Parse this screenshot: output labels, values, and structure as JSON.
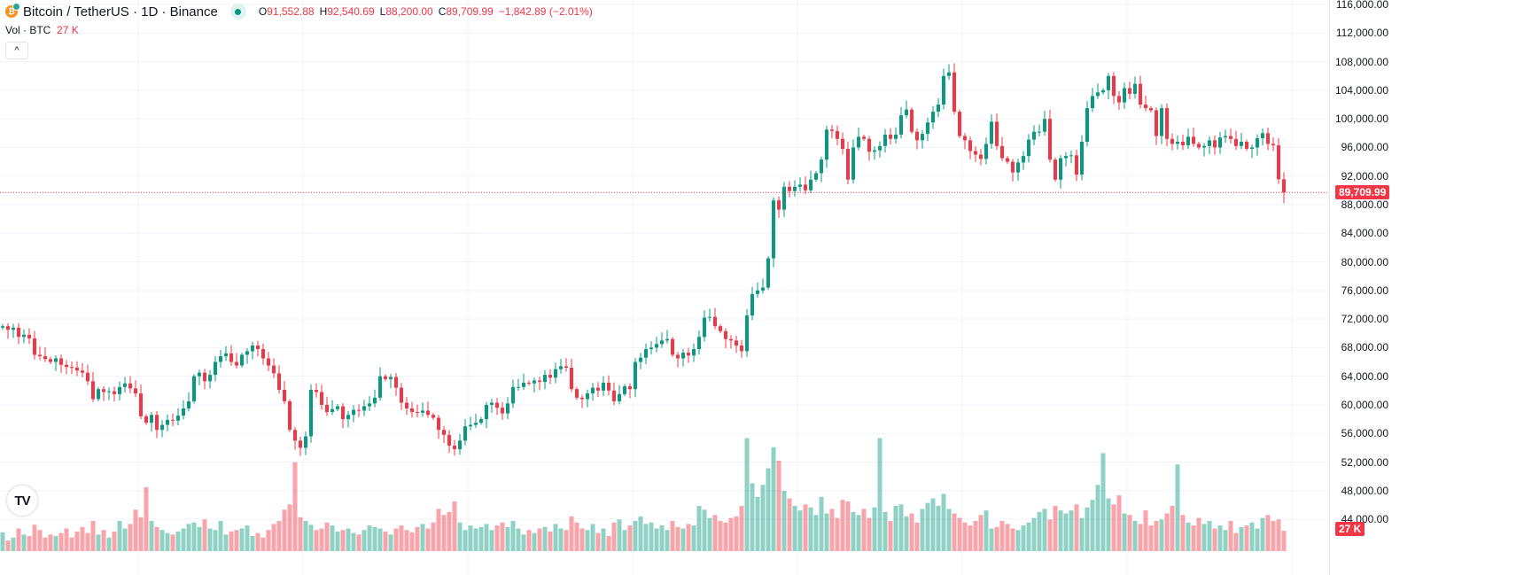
{
  "header": {
    "coin_icon": "bitcoin-icon",
    "symbol": "Bitcoin / TetherUS · 1D · Binance",
    "open_label": "O",
    "open": "91,552.88",
    "high_label": "H",
    "high": "92,540.69",
    "low_label": "L",
    "low": "88,200.00",
    "close_label": "C",
    "close": "89,709.99",
    "change": "−1,842.89 (−2.01%)",
    "market_status": "market-open-dot"
  },
  "volume_legend": {
    "label": "Vol · BTC",
    "value": "27 K"
  },
  "collapse_icon": "^",
  "logo": "TV",
  "colors": {
    "up": "#089981",
    "down": "#F23645",
    "grid": "#f0f3fa"
  },
  "price_axis": {
    "labels": [
      "116,000.00",
      "112,000.00",
      "108,000.00",
      "104,000.00",
      "100,000.00",
      "96,000.00",
      "92,000.00",
      "88,000.00",
      "84,000.00",
      "80,000.00",
      "76,000.00",
      "72,000.00",
      "68,000.00",
      "64,000.00",
      "60,000.00",
      "56,000.00",
      "52,000.00",
      "48,000.00",
      "44,000.00"
    ],
    "last_price_tag": "89,709.99",
    "volume_tag": "27 K"
  },
  "chart_data": {
    "type": "candlestick",
    "interval": "1D",
    "price_unit": "USDT (thousands)",
    "ylim": [
      44,
      116
    ],
    "last_candle": {
      "open": 91.55288,
      "high": 92.54069,
      "low": 88.2,
      "close": 89.70999
    },
    "closes": [
      71.0,
      70.5,
      70.8,
      69.5,
      69.8,
      69.3,
      67.0,
      66.8,
      66.4,
      66.0,
      66.5,
      65.6,
      65.3,
      65.2,
      64.8,
      64.5,
      63.3,
      60.8,
      62.2,
      61.8,
      61.9,
      61.5,
      62.5,
      63.0,
      62.3,
      61.6,
      58.4,
      57.5,
      58.6,
      56.5,
      57.2,
      57.9,
      57.8,
      58.5,
      59.5,
      60.5,
      64.0,
      64.5,
      63.3,
      64.2,
      66.0,
      66.8,
      67.2,
      66.0,
      65.5,
      67.0,
      67.5,
      68.3,
      67.8,
      66.5,
      65.5,
      64.4,
      62.1,
      60.5,
      56.5,
      55.0,
      54.0,
      55.6,
      62.1,
      61.8,
      60.0,
      59.0,
      59.4,
      59.8,
      58.0,
      58.6,
      59.3,
      59.2,
      59.8,
      60.2,
      61.0,
      64.0,
      63.6,
      63.9,
      62.4,
      60.3,
      59.5,
      59.0,
      58.9,
      59.2,
      58.6,
      58.2,
      56.5,
      55.8,
      54.3,
      53.8,
      55.0,
      57.0,
      57.2,
      57.5,
      58.0,
      60.0,
      60.3,
      59.6,
      58.8,
      60.2,
      62.5,
      62.5,
      63.1,
      63.0,
      63.4,
      63.2,
      64.2,
      63.8,
      65.0,
      65.4,
      65.2,
      62.2,
      61.0,
      60.8,
      61.6,
      62.4,
      62.0,
      63.1,
      62.0,
      60.5,
      61.5,
      62.6,
      62.2,
      66.0,
      66.6,
      67.8,
      68.0,
      68.5,
      69.0,
      69.2,
      67.0,
      66.5,
      67.3,
      66.9,
      67.8,
      69.5,
      72.2,
      72.3,
      71.0,
      70.3,
      69.2,
      69.0,
      68.3,
      67.5,
      72.5,
      75.5,
      76.0,
      76.4,
      80.5,
      88.6,
      87.3,
      90.5,
      89.9,
      90.5,
      90.8,
      90.0,
      91.5,
      92.4,
      94.3,
      98.5,
      98.3,
      97.2,
      95.8,
      91.5,
      96.0,
      97.5,
      97.2,
      95.4,
      95.6,
      96.2,
      97.8,
      97.2,
      97.8,
      100.5,
      101.3,
      98.2,
      97.0,
      97.9,
      99.5,
      101.0,
      102.0,
      106.0,
      106.5,
      101.0,
      97.6,
      97.0,
      95.5,
      95.0,
      94.4,
      96.5,
      99.6,
      96.2,
      94.5,
      94.0,
      92.5,
      93.9,
      94.8,
      97.1,
      98.2,
      98.2,
      100.0,
      94.3,
      91.5,
      94.5,
      94.8,
      94.9,
      92.2,
      96.8,
      101.5,
      103.2,
      103.7,
      104.0,
      106.0,
      103.2,
      102.3,
      104.3,
      103.5,
      104.9,
      102.0,
      101.5,
      101.2,
      97.6,
      101.5,
      97.2,
      96.5,
      96.8,
      96.3,
      97.5,
      96.5,
      96.0,
      96.2,
      97.0,
      96.0,
      97.4,
      97.6,
      97.2,
      96.2,
      96.8,
      95.8,
      96.0,
      97.3,
      98.0,
      96.5,
      96.3,
      91.55288,
      89.70999
    ],
    "volumes_k": [
      25,
      14,
      18,
      30,
      22,
      20,
      35,
      28,
      18,
      22,
      20,
      24,
      30,
      18,
      26,
      32,
      24,
      40,
      22,
      28,
      18,
      26,
      40,
      30,
      36,
      55,
      45,
      85,
      40,
      32,
      28,
      24,
      22,
      26,
      30,
      36,
      38,
      32,
      42,
      30,
      28,
      40,
      22,
      26,
      28,
      30,
      34,
      20,
      24,
      18,
      28,
      36,
      40,
      55,
      62,
      118,
      45,
      40,
      35,
      28,
      30,
      38,
      34,
      26,
      28,
      30,
      24,
      22,
      28,
      34,
      32,
      30,
      26,
      22,
      30,
      34,
      28,
      25,
      32,
      36,
      30,
      38,
      56,
      48,
      52,
      66,
      38,
      28,
      34,
      30,
      32,
      36,
      28,
      34,
      38,
      32,
      40,
      30,
      22,
      28,
      24,
      30,
      32,
      26,
      36,
      30,
      28,
      46,
      38,
      30,
      28,
      36,
      24,
      30,
      20,
      38,
      42,
      28,
      34,
      40,
      46,
      36,
      38,
      30,
      34,
      28,
      40,
      32,
      30,
      36,
      34,
      60,
      55,
      44,
      48,
      40,
      38,
      44,
      46,
      60,
      150,
      90,
      72,
      88,
      110,
      138,
      120,
      80,
      70,
      60,
      54,
      62,
      58,
      48,
      72,
      50,
      56,
      44,
      68,
      66,
      52,
      48,
      56,
      44,
      58,
      150,
      52,
      40,
      60,
      62,
      46,
      50,
      38,
      56,
      64,
      70,
      60,
      76,
      56,
      50,
      44,
      38,
      34,
      40,
      48,
      54,
      30,
      32,
      40,
      36,
      30,
      28,
      34,
      38,
      44,
      52,
      56,
      42,
      60,
      54,
      50,
      54,
      62,
      44,
      58,
      68,
      88,
      130,
      70,
      62,
      74,
      50,
      48,
      40,
      36,
      54,
      34,
      40,
      42,
      50,
      60,
      115,
      48,
      38,
      34,
      44,
      36,
      40,
      30,
      34,
      28,
      40,
      24,
      32,
      34,
      38,
      30,
      44,
      48,
      40,
      42,
      27
    ]
  }
}
